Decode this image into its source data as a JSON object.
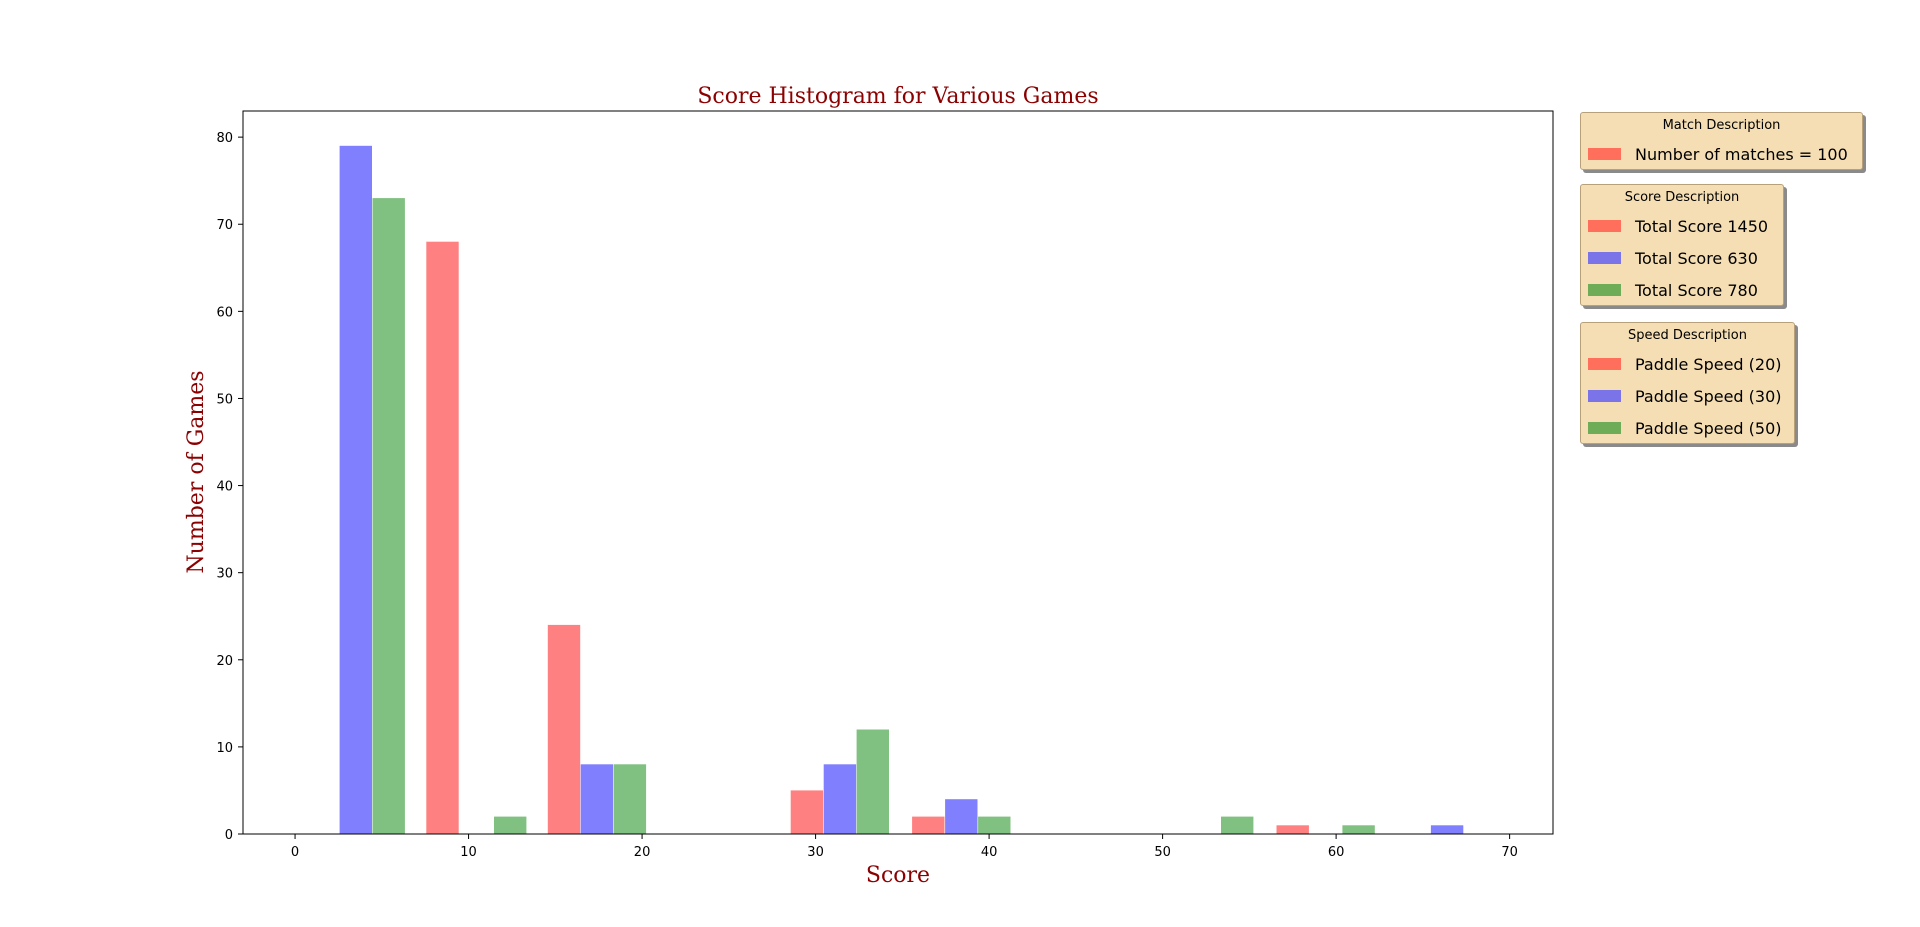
{
  "chart_data": {
    "type": "bar",
    "title": "Score Histogram for Various Games",
    "xlabel": "Score",
    "ylabel": "Number of Games",
    "xlim": [
      -3,
      72.5
    ],
    "ylim": [
      0,
      83
    ],
    "xticks": [
      0,
      10,
      20,
      30,
      40,
      50,
      60,
      70
    ],
    "yticks": [
      0,
      10,
      20,
      30,
      40,
      50,
      60,
      70,
      80
    ],
    "grid": false,
    "series": [
      {
        "color": "#ff8080",
        "bars": [
          {
            "x": 8.5,
            "width": 1.87,
            "value": 68
          },
          {
            "x": 15.5,
            "width": 1.87,
            "value": 24
          },
          {
            "x": 29.5,
            "width": 1.87,
            "value": 5
          },
          {
            "x": 36.5,
            "width": 1.87,
            "value": 2
          },
          {
            "x": 57.5,
            "width": 1.87,
            "value": 1
          }
        ]
      },
      {
        "color": "#8080ff",
        "bars": [
          {
            "x": 3.5,
            "width": 1.87,
            "value": 79
          },
          {
            "x": 17.4,
            "width": 1.87,
            "value": 8
          },
          {
            "x": 31.4,
            "width": 1.87,
            "value": 8
          },
          {
            "x": 38.4,
            "width": 1.87,
            "value": 4
          },
          {
            "x": 66.4,
            "width": 1.87,
            "value": 1
          }
        ]
      },
      {
        "color": "#80c080",
        "bars": [
          {
            "x": 5.4,
            "width": 1.87,
            "value": 73
          },
          {
            "x": 12.4,
            "width": 1.87,
            "value": 2
          },
          {
            "x": 19.3,
            "width": 1.87,
            "value": 8
          },
          {
            "x": 33.3,
            "width": 1.87,
            "value": 12
          },
          {
            "x": 40.3,
            "width": 1.87,
            "value": 2
          },
          {
            "x": 54.3,
            "width": 1.87,
            "value": 2
          },
          {
            "x": 61.3,
            "width": 1.87,
            "value": 1
          }
        ]
      }
    ],
    "legends": [
      {
        "title": "Match Description",
        "entries": [
          {
            "label": "Number of matches = 100",
            "color": "#ff6f5c"
          }
        ]
      },
      {
        "title": "Score Description",
        "entries": [
          {
            "label": "Total Score 1450",
            "color": "#ff6f5c"
          },
          {
            "label": "Total Score 630",
            "color": "#7b74e8"
          },
          {
            "label": "Total Score 780",
            "color": "#6fac57"
          }
        ]
      },
      {
        "title": "Speed Description",
        "entries": [
          {
            "label": "Paddle Speed (20)",
            "color": "#ff6f5c"
          },
          {
            "label": "Paddle Speed (30)",
            "color": "#7b74e8"
          },
          {
            "label": "Paddle Speed (50)",
            "color": "#6fac57"
          }
        ]
      }
    ]
  },
  "colors": {
    "title_text": "#8b0000",
    "legend_background": "#f5deb3"
  }
}
